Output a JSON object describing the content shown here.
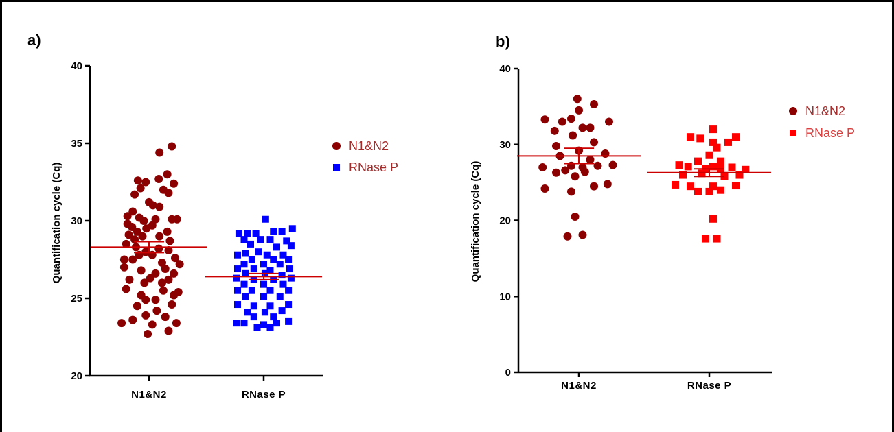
{
  "chart_data": [
    {
      "panel": "a)",
      "type": "scatter",
      "ylabel": "Quantification cycle (Cq)",
      "ylim": [
        20,
        40
      ],
      "yticks": [
        20,
        25,
        30,
        35,
        40
      ],
      "categories": [
        "N1&N2",
        "RNase P"
      ],
      "legend": {
        "placement": "right",
        "entries": [
          "N1&N2",
          "RNase P"
        ]
      },
      "colors": {
        "n1n2": "#8b0000",
        "rnasep": "#0000ff",
        "mean_line": "#cc0000"
      },
      "series": [
        {
          "name": "N1&N2",
          "marker": "circle",
          "color": "#8b0000",
          "mean": 28.3,
          "sem": 0.35,
          "points": [
            [
              0.35,
              34.8
            ],
            [
              0.16,
              34.4
            ],
            [
              -0.17,
              32.6
            ],
            [
              0.15,
              32.7
            ],
            [
              0.28,
              33.0
            ],
            [
              -0.05,
              32.5
            ],
            [
              0.38,
              32.4
            ],
            [
              -0.13,
              32.1
            ],
            [
              0.22,
              32.0
            ],
            [
              0.3,
              31.8
            ],
            [
              -0.22,
              31.7
            ],
            [
              0.0,
              31.2
            ],
            [
              0.06,
              31.0
            ],
            [
              0.16,
              30.9
            ],
            [
              -0.25,
              30.6
            ],
            [
              -0.33,
              30.3
            ],
            [
              -0.15,
              30.2
            ],
            [
              -0.08,
              30.0
            ],
            [
              0.1,
              30.1
            ],
            [
              0.35,
              30.1
            ],
            [
              0.43,
              30.1
            ],
            [
              -0.33,
              29.8
            ],
            [
              -0.26,
              29.6
            ],
            [
              0.05,
              29.7
            ],
            [
              -0.04,
              29.5
            ],
            [
              0.28,
              29.3
            ],
            [
              -0.18,
              29.3
            ],
            [
              -0.31,
              29.1
            ],
            [
              -0.1,
              29.0
            ],
            [
              0.16,
              29.0
            ],
            [
              -0.22,
              28.8
            ],
            [
              0.32,
              28.7
            ],
            [
              -0.35,
              28.5
            ],
            [
              -0.2,
              28.3
            ],
            [
              0.15,
              28.2
            ],
            [
              0.3,
              28.1
            ],
            [
              -0.05,
              28.0
            ],
            [
              -0.15,
              27.8
            ],
            [
              -0.38,
              27.5
            ],
            [
              0.05,
              27.8
            ],
            [
              0.4,
              27.6
            ],
            [
              -0.25,
              27.5
            ],
            [
              0.2,
              27.3
            ],
            [
              0.47,
              27.2
            ],
            [
              -0.38,
              27.0
            ],
            [
              -0.12,
              26.8
            ],
            [
              0.1,
              26.6
            ],
            [
              0.38,
              26.6
            ],
            [
              0.25,
              26.9
            ],
            [
              -0.3,
              26.2
            ],
            [
              0.02,
              26.3
            ],
            [
              0.3,
              26.2
            ],
            [
              -0.07,
              26.0
            ],
            [
              0.2,
              26.0
            ],
            [
              -0.35,
              25.6
            ],
            [
              0.22,
              25.5
            ],
            [
              0.45,
              25.4
            ],
            [
              -0.12,
              25.2
            ],
            [
              0.38,
              25.2
            ],
            [
              -0.05,
              24.9
            ],
            [
              0.1,
              24.9
            ],
            [
              -0.18,
              24.5
            ],
            [
              0.35,
              24.6
            ],
            [
              0.12,
              24.2
            ],
            [
              -0.05,
              23.9
            ],
            [
              0.25,
              23.8
            ],
            [
              -0.25,
              23.6
            ],
            [
              -0.42,
              23.4
            ],
            [
              0.42,
              23.4
            ],
            [
              0.05,
              23.3
            ],
            [
              0.3,
              22.9
            ],
            [
              -0.02,
              22.7
            ]
          ]
        },
        {
          "name": "RNase P",
          "marker": "square",
          "color": "#0000ff",
          "mean": 26.4,
          "sem": 0.2,
          "points": [
            [
              0.03,
              30.1
            ],
            [
              0.44,
              29.5
            ],
            [
              -0.38,
              29.2
            ],
            [
              -0.25,
              29.2
            ],
            [
              -0.12,
              29.2
            ],
            [
              0.15,
              29.3
            ],
            [
              0.28,
              29.3
            ],
            [
              -0.3,
              28.8
            ],
            [
              -0.05,
              28.8
            ],
            [
              0.1,
              28.8
            ],
            [
              0.35,
              28.7
            ],
            [
              -0.2,
              28.5
            ],
            [
              0.2,
              28.3
            ],
            [
              0.42,
              28.4
            ],
            [
              -0.4,
              27.8
            ],
            [
              -0.28,
              27.9
            ],
            [
              -0.08,
              28.0
            ],
            [
              0.05,
              27.8
            ],
            [
              0.3,
              27.8
            ],
            [
              -0.18,
              27.5
            ],
            [
              0.15,
              27.5
            ],
            [
              0.38,
              27.5
            ],
            [
              -0.3,
              27.2
            ],
            [
              0.0,
              27.2
            ],
            [
              0.25,
              27.2
            ],
            [
              -0.4,
              26.9
            ],
            [
              -0.15,
              26.9
            ],
            [
              0.1,
              26.8
            ],
            [
              0.4,
              26.9
            ],
            [
              -0.28,
              26.6
            ],
            [
              0.02,
              26.6
            ],
            [
              0.28,
              26.5
            ],
            [
              -0.42,
              26.3
            ],
            [
              -0.15,
              26.2
            ],
            [
              0.15,
              26.2
            ],
            [
              0.42,
              26.3
            ],
            [
              -0.3,
              25.9
            ],
            [
              0.0,
              25.9
            ],
            [
              0.3,
              25.9
            ],
            [
              -0.4,
              25.5
            ],
            [
              -0.18,
              25.5
            ],
            [
              0.1,
              25.5
            ],
            [
              0.38,
              25.5
            ],
            [
              -0.28,
              25.1
            ],
            [
              0.0,
              25.1
            ],
            [
              0.25,
              25.1
            ],
            [
              -0.4,
              24.6
            ],
            [
              -0.15,
              24.5
            ],
            [
              0.1,
              24.5
            ],
            [
              0.38,
              24.6
            ],
            [
              -0.25,
              24.1
            ],
            [
              0.02,
              24.1
            ],
            [
              0.28,
              24.2
            ],
            [
              -0.15,
              23.8
            ],
            [
              0.15,
              23.8
            ],
            [
              -0.42,
              23.4
            ],
            [
              -0.3,
              23.4
            ],
            [
              0.0,
              23.3
            ],
            [
              0.2,
              23.4
            ],
            [
              0.38,
              23.5
            ],
            [
              -0.1,
              23.1
            ],
            [
              0.1,
              23.1
            ]
          ]
        }
      ]
    },
    {
      "panel": "b)",
      "type": "scatter",
      "ylabel": "Quantification cycle (Cq)",
      "ylim": [
        0,
        40
      ],
      "yticks": [
        0,
        10,
        20,
        30,
        40
      ],
      "categories": [
        "N1&N2",
        "RNase P"
      ],
      "legend": {
        "placement": "right",
        "entries": [
          "N1&N2",
          "RNase P"
        ]
      },
      "colors": {
        "n1n2": "#8b0000",
        "rnasep": "#ff0000",
        "mean_line": "#cc0000"
      },
      "series": [
        {
          "name": "N1&N2",
          "marker": "circle",
          "color": "#8b0000",
          "mean": 28.5,
          "sem": 1.0,
          "points": [
            [
              -0.02,
              36.0
            ],
            [
              0.2,
              35.3
            ],
            [
              0.0,
              34.5
            ],
            [
              -0.45,
              33.3
            ],
            [
              -0.22,
              33.0
            ],
            [
              -0.1,
              33.4
            ],
            [
              0.4,
              33.0
            ],
            [
              0.05,
              32.2
            ],
            [
              0.15,
              32.2
            ],
            [
              -0.32,
              31.8
            ],
            [
              -0.08,
              31.2
            ],
            [
              0.2,
              30.3
            ],
            [
              -0.3,
              29.8
            ],
            [
              0.0,
              29.2
            ],
            [
              0.35,
              28.8
            ],
            [
              -0.25,
              28.5
            ],
            [
              0.15,
              28.0
            ],
            [
              -0.48,
              27.0
            ],
            [
              -0.1,
              27.2
            ],
            [
              0.05,
              27.0
            ],
            [
              0.25,
              27.2
            ],
            [
              0.45,
              27.3
            ],
            [
              -0.3,
              26.3
            ],
            [
              -0.18,
              26.6
            ],
            [
              0.08,
              26.4
            ],
            [
              -0.05,
              25.8
            ],
            [
              0.38,
              24.8
            ],
            [
              -0.45,
              24.2
            ],
            [
              0.2,
              24.5
            ],
            [
              -0.1,
              23.8
            ],
            [
              -0.05,
              20.5
            ],
            [
              -0.15,
              17.9
            ],
            [
              0.05,
              18.1
            ]
          ]
        },
        {
          "name": "RNase P",
          "marker": "square",
          "color": "#ff0000",
          "mean": 26.3,
          "sem": 0.5,
          "points": [
            [
              0.05,
              32.0
            ],
            [
              -0.25,
              31.0
            ],
            [
              0.35,
              31.0
            ],
            [
              -0.12,
              30.8
            ],
            [
              0.05,
              30.3
            ],
            [
              0.25,
              30.3
            ],
            [
              0.1,
              29.6
            ],
            [
              0.0,
              28.6
            ],
            [
              -0.15,
              27.8
            ],
            [
              0.15,
              27.8
            ],
            [
              -0.4,
              27.3
            ],
            [
              -0.28,
              27.1
            ],
            [
              -0.05,
              26.8
            ],
            [
              0.05,
              27.1
            ],
            [
              0.15,
              26.8
            ],
            [
              0.3,
              27.0
            ],
            [
              0.48,
              26.7
            ],
            [
              -0.35,
              26.0
            ],
            [
              -0.1,
              26.2
            ],
            [
              0.2,
              25.8
            ],
            [
              0.4,
              26.0
            ],
            [
              -0.45,
              24.7
            ],
            [
              -0.25,
              24.5
            ],
            [
              0.05,
              24.5
            ],
            [
              0.35,
              24.6
            ],
            [
              -0.15,
              23.8
            ],
            [
              0.0,
              23.8
            ],
            [
              0.15,
              24.0
            ],
            [
              0.05,
              20.2
            ],
            [
              -0.05,
              17.6
            ],
            [
              0.1,
              17.6
            ]
          ]
        }
      ]
    }
  ]
}
